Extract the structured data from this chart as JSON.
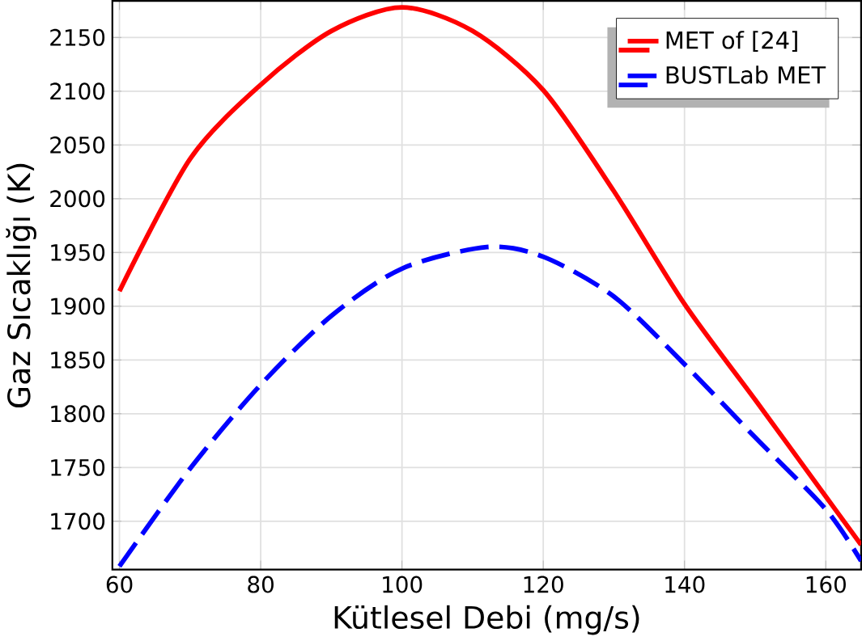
{
  "chart_data": {
    "type": "line",
    "xlabel": "Kütlesel Debi (mg/s)",
    "ylabel": "Gaz Sıcaklığı (K)",
    "xlim": [
      59,
      165
    ],
    "ylim": [
      1655,
      2184
    ],
    "xticks": [
      60,
      80,
      100,
      120,
      140,
      160
    ],
    "yticks": [
      1700,
      1750,
      1800,
      1850,
      1900,
      1950,
      2000,
      2050,
      2100,
      2150
    ],
    "grid": true,
    "legend": "top right",
    "series": [
      {
        "name": "MET of [24]",
        "color": "#ff0000",
        "line_style": "solid",
        "x": [
          60,
          70,
          80,
          90,
          100,
          110,
          120,
          130,
          140,
          150,
          160,
          165
        ],
        "values": [
          1914,
          2037,
          2106,
          2156,
          2178,
          2156,
          2101,
          2007,
          1902,
          1813,
          1723,
          1678
        ]
      },
      {
        "name": "BUSTLab MET",
        "color": "#0000ff",
        "line_style": "dashed",
        "x": [
          60,
          70,
          80,
          90,
          100,
          112,
          120,
          130,
          140,
          150,
          160,
          165
        ],
        "values": [
          1658,
          1749,
          1827,
          1891,
          1935,
          1955,
          1946,
          1909,
          1846,
          1778,
          1711,
          1663
        ]
      }
    ]
  }
}
